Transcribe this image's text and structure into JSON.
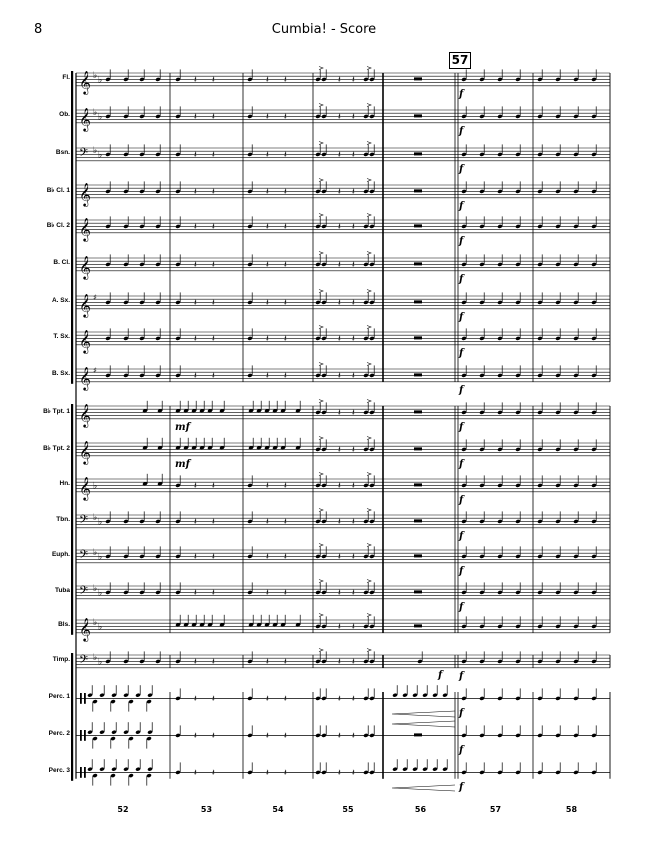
{
  "page": {
    "number": "8",
    "title": "Cumbia! - Score",
    "rehearsal_mark": "57"
  },
  "instruments": [
    {
      "label": "Fl.",
      "clef": "treble",
      "key": "Bb"
    },
    {
      "label": "Ob.",
      "clef": "treble",
      "key": "Bb"
    },
    {
      "label": "Bsn.",
      "clef": "bass",
      "key": "Bb"
    },
    {
      "label": "B♭ Cl. 1",
      "clef": "treble",
      "key": "C"
    },
    {
      "label": "B♭ Cl. 2",
      "clef": "treble",
      "key": "C"
    },
    {
      "label": "B. Cl.",
      "clef": "treble",
      "key": "C"
    },
    {
      "label": "A. Sx.",
      "clef": "treble",
      "key": "G"
    },
    {
      "label": "T. Sx.",
      "clef": "treble",
      "key": "C"
    },
    {
      "label": "B. Sx.",
      "clef": "treble",
      "key": "G"
    },
    {
      "label": "B♭ Tpt. 1",
      "clef": "treble",
      "key": "C"
    },
    {
      "label": "B♭ Tpt. 2",
      "clef": "treble",
      "key": "C"
    },
    {
      "label": "Hn.",
      "clef": "treble",
      "key": "F"
    },
    {
      "label": "Tbn.",
      "clef": "bass",
      "key": "Bb"
    },
    {
      "label": "Euph.",
      "clef": "bass",
      "key": "Bb"
    },
    {
      "label": "Tuba",
      "clef": "bass",
      "key": "Bb"
    },
    {
      "label": "Bls.",
      "clef": "treble",
      "key": "Bb"
    },
    {
      "label": "Timp.",
      "clef": "bass",
      "key": "Bb"
    },
    {
      "label": "Perc. 1",
      "clef": "perc",
      "key": "C"
    },
    {
      "label": "Perc. 2",
      "clef": "perc",
      "key": "C"
    },
    {
      "label": "Perc. 3",
      "clef": "perc",
      "key": "C"
    }
  ],
  "measures": [
    "52",
    "53",
    "54",
    "55",
    "56",
    "57",
    "58"
  ],
  "dynamics": {
    "forte": "f",
    "mezzo_forte": "mf"
  }
}
